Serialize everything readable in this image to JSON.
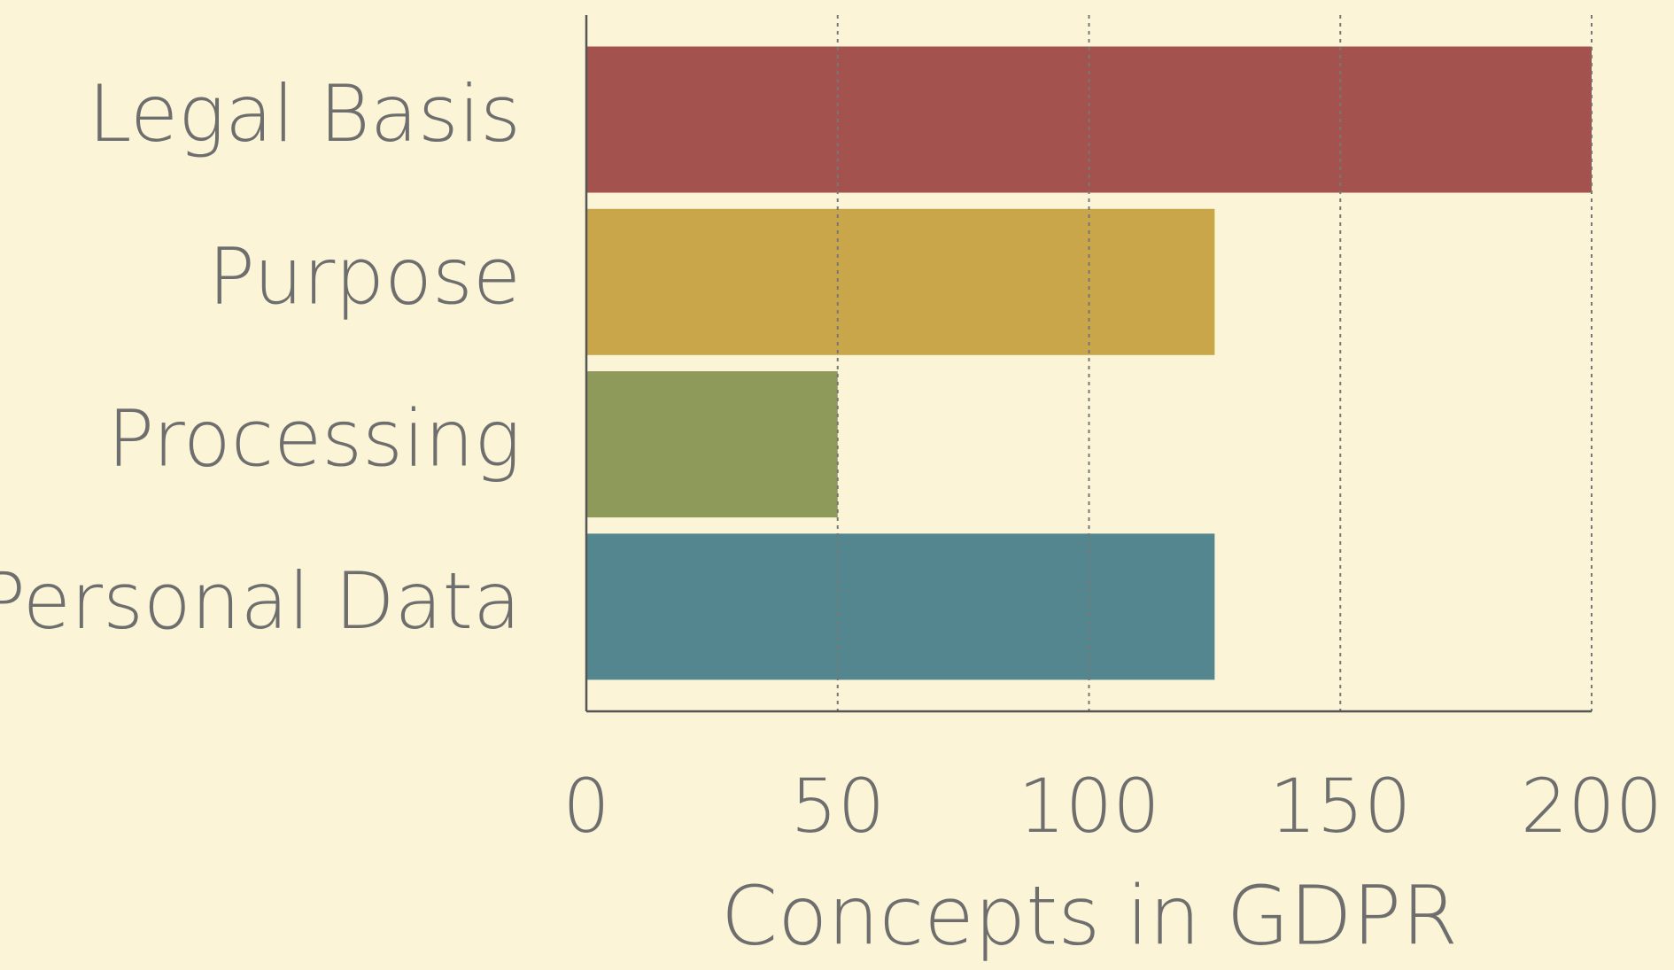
{
  "chart_data": {
    "type": "hbar",
    "categories": [
      "Legal Basis",
      "Purpose",
      "Processing",
      "Personal Data"
    ],
    "values": [
      200,
      125,
      50,
      125
    ],
    "colors": [
      "#a3524d",
      "#c9a64a",
      "#8e9a5a",
      "#548690"
    ],
    "xlabel": "Concepts in GDPR",
    "xlim": [
      0,
      200
    ],
    "xticks": [
      0,
      50,
      100,
      150,
      200
    ],
    "grid": true
  }
}
